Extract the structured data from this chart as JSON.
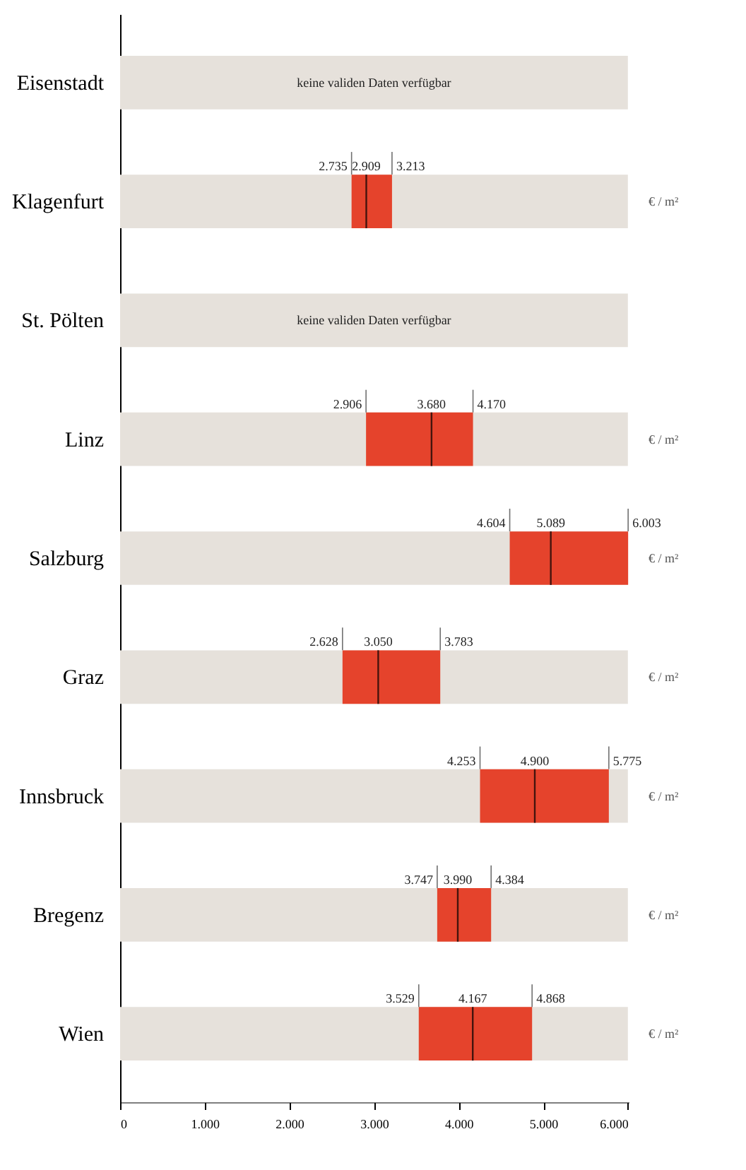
{
  "chart_data": {
    "type": "box",
    "orientation": "horizontal",
    "categories": [
      "Eisenstadt",
      "Klagenfurt",
      "St. Pölten",
      "Linz",
      "Salzburg",
      "Graz",
      "Innsbruck",
      "Bregenz",
      "Wien"
    ],
    "series": [
      {
        "type": "bar",
        "color": "#e6e1db",
        "values": [
          6000,
          6000,
          6000,
          6000,
          6000,
          6000,
          6000,
          6000,
          6000
        ]
      },
      {
        "type": "box",
        "color": "#e5432c",
        "boxes": [
          null,
          {
            "low": 2735,
            "q1": 2735,
            "median": 2909,
            "q3": 3213,
            "high": 3213
          },
          null,
          {
            "low": 2906,
            "q1": 2906,
            "median": 3680,
            "q3": 4170,
            "high": 4170
          },
          {
            "low": 4604,
            "q1": 4604,
            "median": 5089,
            "q3": 6003,
            "high": 6003
          },
          {
            "low": 2628,
            "q1": 2628,
            "median": 3050,
            "q3": 3783,
            "high": 3783
          },
          {
            "low": 4253,
            "q1": 4253,
            "median": 4900,
            "q3": 5775,
            "high": 5775
          },
          {
            "low": 3747,
            "q1": 3747,
            "median": 3990,
            "q3": 4384,
            "high": 4384
          },
          {
            "low": 3529,
            "q1": 3529,
            "median": 4167,
            "q3": 4868,
            "high": 4868
          }
        ]
      }
    ],
    "xlim": [
      0,
      6010
    ],
    "xticks": [
      0,
      {
        "value": 1000,
        "label": "1.000"
      },
      {
        "value": 2000,
        "label": "2.000"
      },
      {
        "value": 3000,
        "label": "3.000"
      },
      {
        "value": 4000,
        "label": "4.000"
      },
      {
        "value": 5000,
        "label": "5.000"
      },
      {
        "value": 6000,
        "label": "6.000"
      }
    ],
    "annotations": [
      "keine validen Daten verfügbar",
      "€ / m²",
      "keine validen Daten verfügbar",
      "€ / m²",
      "€ / m²",
      "€ / m²",
      "€ / m²",
      "€ / m²",
      "€ / m²",
      {
        "text": "2.735",
        "x": 2735,
        "y": "Klagenfurt"
      },
      {
        "text": "2.909",
        "x": 2909,
        "y": "Klagenfurt"
      },
      {
        "text": "3.213",
        "x": 3213,
        "y": "Klagenfurt"
      },
      {
        "text": "2.906",
        "x": 2906,
        "y": "Linz"
      },
      {
        "text": "3.680",
        "x": 3680,
        "y": "Linz"
      },
      {
        "text": "4.170",
        "x": 4170,
        "y": "Linz"
      },
      {
        "text": "4.604",
        "x": 4604,
        "y": "Salzburg"
      },
      {
        "text": "5.089",
        "x": 5089,
        "y": "Salzburg"
      },
      {
        "text": "6.003",
        "x": 6003,
        "y": "Salzburg"
      },
      {
        "text": "2.628",
        "x": 2628,
        "y": "Graz"
      },
      {
        "text": "3.050",
        "x": 3050,
        "y": "Graz"
      },
      {
        "text": "3.783",
        "x": 3783,
        "y": "Graz"
      },
      {
        "text": "4.253",
        "x": 4253,
        "y": "Innsbruck"
      },
      {
        "text": "4.900",
        "x": 4900,
        "y": "Innsbruck"
      },
      {
        "text": "5.775",
        "x": 5775,
        "y": "Innsbruck"
      },
      {
        "text": "3.747",
        "x": 3747,
        "y": "Bregenz"
      },
      {
        "text": "3.990",
        "x": 3990,
        "y": "Bregenz"
      },
      {
        "text": "4.384",
        "x": 4384,
        "y": "Bregenz"
      },
      {
        "text": "3.529",
        "x": 3529,
        "y": "Wien"
      },
      {
        "text": "4.167",
        "x": 4167,
        "y": "Wien"
      },
      {
        "text": "4.868",
        "x": 4868,
        "y": "Wien"
      }
    ]
  }
}
